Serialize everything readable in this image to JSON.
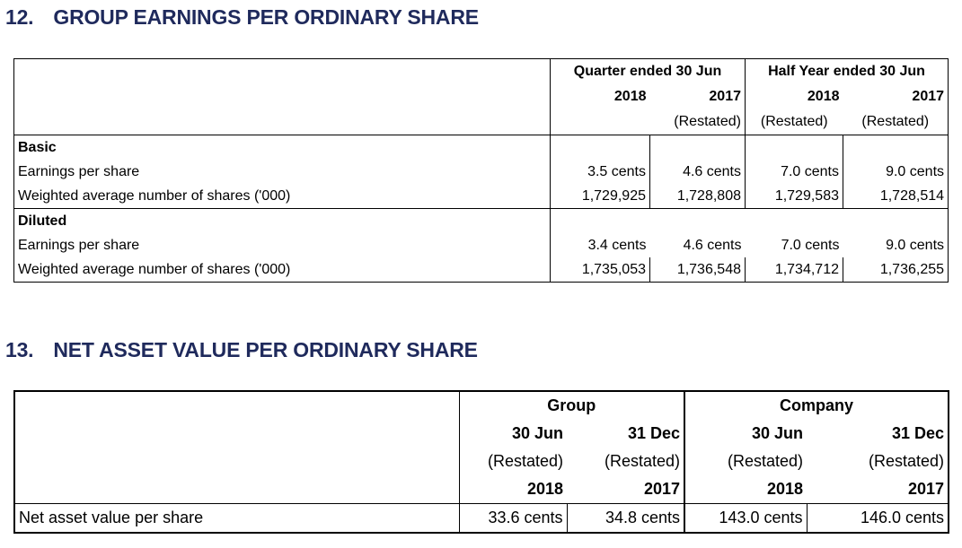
{
  "section12": {
    "number": "12.",
    "title": "GROUP EARNINGS PER ORDINARY SHARE",
    "header": {
      "quarter_label": "Quarter ended 30 Jun",
      "halfyear_label": "Half Year ended 30 Jun",
      "years": [
        "2018",
        "2017",
        "2018",
        "2017"
      ],
      "notes": [
        "",
        "(Restated)",
        "(Restated)",
        "(Restated)"
      ]
    },
    "basic": {
      "label": "Basic",
      "rows": [
        {
          "label": "Earnings per share",
          "values": [
            "3.5 cents",
            "4.6 cents",
            "7.0 cents",
            "9.0 cents"
          ]
        },
        {
          "label": "Weighted average number of shares ('000)",
          "values": [
            "1,729,925",
            "1,728,808",
            "1,729,583",
            "1,728,514"
          ]
        }
      ]
    },
    "diluted": {
      "label": "Diluted",
      "rows": [
        {
          "label": "Earnings per share",
          "values": [
            "3.4 cents",
            "4.6 cents",
            "7.0 cents",
            "9.0 cents"
          ]
        },
        {
          "label": "Weighted average number of shares ('000)",
          "values": [
            "1,735,053",
            "1,736,548",
            "1,734,712",
            "1,736,255"
          ]
        }
      ]
    }
  },
  "section13": {
    "number": "13.",
    "title": "NET ASSET VALUE PER ORDINARY SHARE",
    "header": {
      "group_label": "Group",
      "company_label": "Company",
      "dates": [
        "30 Jun",
        "31 Dec",
        "30 Jun",
        "31 Dec"
      ],
      "notes": [
        "(Restated)",
        "(Restated)",
        "(Restated)",
        "(Restated)"
      ],
      "years": [
        "2018",
        "2017",
        "2018",
        "2017"
      ]
    },
    "row": {
      "label": "Net asset value per share",
      "values": [
        "33.6 cents",
        "34.8 cents",
        "143.0 cents",
        "146.0 cents"
      ]
    }
  }
}
